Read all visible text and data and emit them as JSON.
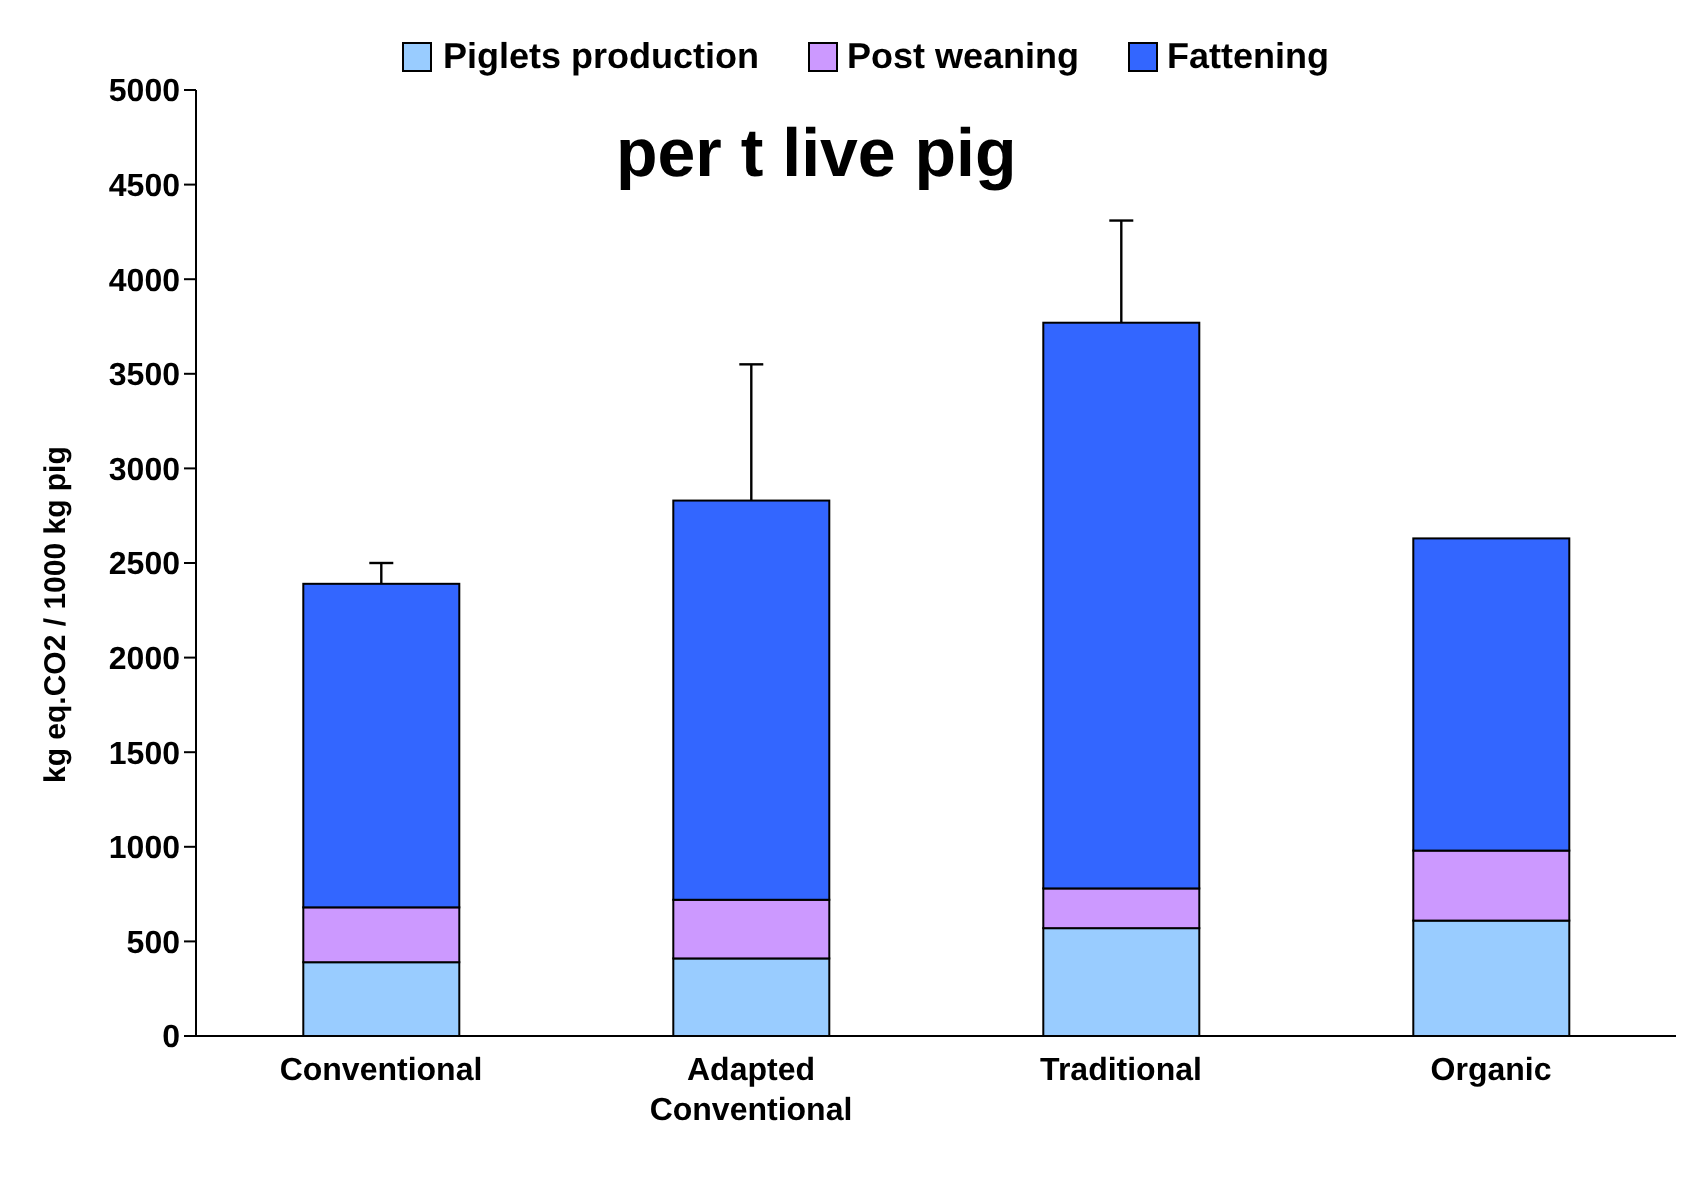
{
  "chart_data": {
    "type": "bar",
    "title": "per t live pig",
    "ylabel": "kg eq.CO2 / 1000 kg pig",
    "categories": [
      "Conventional",
      "Adapted Conventional",
      "Traditional",
      "Organic"
    ],
    "stacked": true,
    "legend": "top",
    "grid": false,
    "ylim": [
      0,
      5000
    ],
    "yticks": [
      0,
      500,
      1000,
      1500,
      2000,
      2500,
      3000,
      3500,
      4000,
      4500,
      5000
    ],
    "series": [
      {
        "name": "Piglets production",
        "color": "#99ccff",
        "values": [
          390,
          410,
          570,
          610
        ]
      },
      {
        "name": "Post weaning",
        "color": "#cc99ff",
        "values": [
          290,
          310,
          210,
          370
        ]
      },
      {
        "name": "Fattening",
        "color": "#3366ff",
        "values": [
          1710,
          2110,
          2990,
          1650
        ],
        "errors": [
          [
            2390,
            2500
          ],
          [
            2830,
            3550
          ],
          [
            3770,
            4310
          ],
          null
        ]
      }
    ]
  }
}
